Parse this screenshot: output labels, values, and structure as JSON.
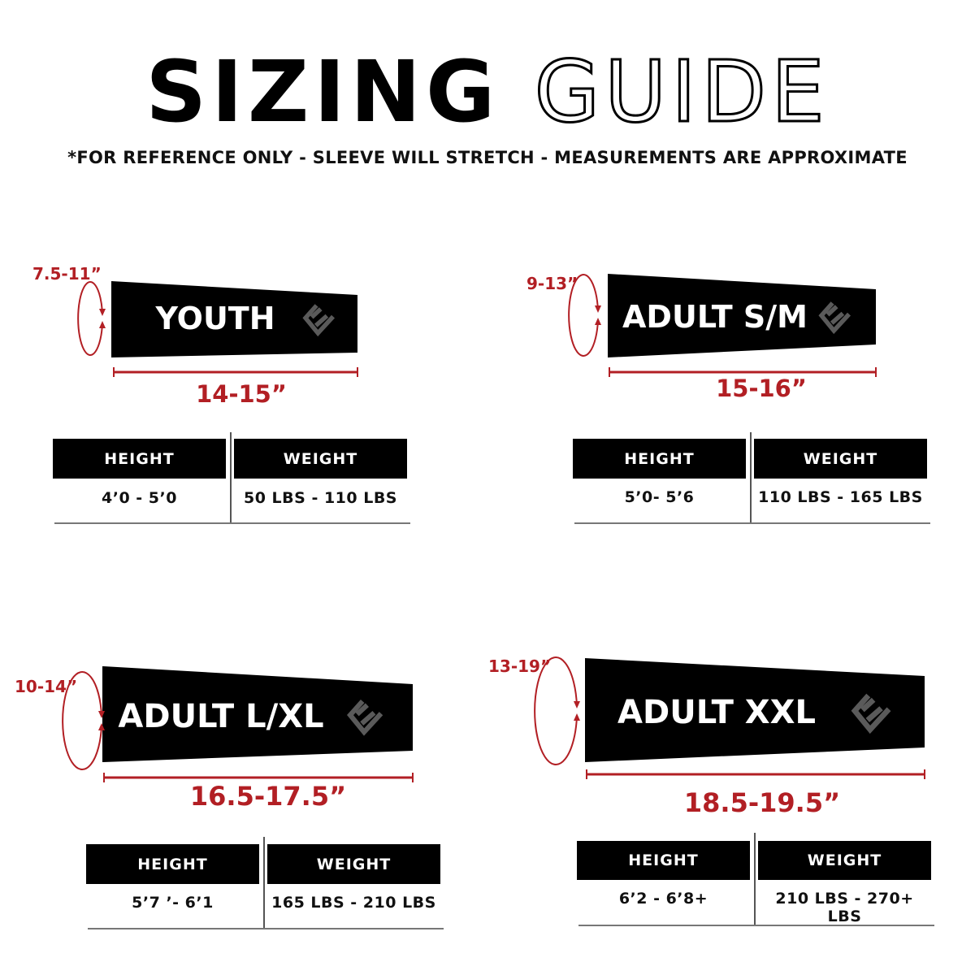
{
  "header": {
    "title_solid": "SIZING",
    "title_outline": "GUIDE",
    "subtitle": "*FOR REFERENCE ONLY - SLEEVE WILL STRETCH - MEASUREMENTS ARE APPROXIMATE"
  },
  "colors": {
    "accent": "#b21f24",
    "sleeve": "#000000",
    "logo": "#5a5a5a"
  },
  "table_headers": {
    "height": "HEIGHT",
    "weight": "WEIGHT"
  },
  "sizes": [
    {
      "name": "YOUTH",
      "circumference": "7.5-11”",
      "length": "14-15”",
      "height": "4’0 - 5’0",
      "weight": "50 LBS - 110 LBS"
    },
    {
      "name": "ADULT S/M",
      "circumference": "9-13”",
      "length": "15-16”",
      "height": "5’0- 5’6",
      "weight": "110 LBS - 165 LBS"
    },
    {
      "name": "ADULT L/XL",
      "circumference": "10-14”",
      "length": "16.5-17.5”",
      "height": "5’7 ’- 6’1",
      "weight": "165 LBS - 210 LBS"
    },
    {
      "name": "ADULT XXL",
      "circumference": "13-19”",
      "length": "18.5-19.5”",
      "height": "6’2 - 6’8+",
      "weight": "210 LBS - 270+ LBS"
    }
  ],
  "icons": {
    "logo": "e-brand-logo",
    "circumference": "circular-arrow-icon",
    "length": "dimension-line-icon"
  }
}
